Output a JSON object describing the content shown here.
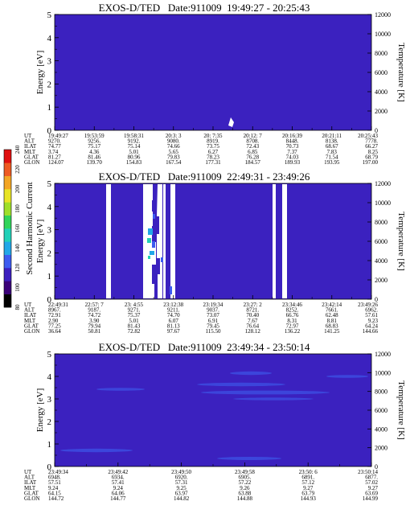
{
  "colorbar": {
    "label": "Second Harmonic Current",
    "ticks": [
      "80",
      "100",
      "120",
      "140",
      "160",
      "180",
      "200",
      "220",
      "240"
    ],
    "colors": [
      "#000000",
      "#3a0078",
      "#3c1fbf",
      "#3d5bf0",
      "#22a7e8",
      "#22d1b8",
      "#31d45a",
      "#9fdf2a",
      "#e8e426",
      "#f3a524",
      "#ee5a22",
      "#e01010"
    ]
  },
  "chart_data": [
    {
      "type": "heatmap",
      "title": "EXOS-D/TED   Date:911009  19:49:27 - 20:25:43",
      "ylabel": "Energy [eV]",
      "y2label": "Temperature [K]",
      "ylim": [
        0,
        5
      ],
      "y2lim": [
        0,
        12000
      ],
      "yticks": [
        "0",
        "1",
        "2",
        "3",
        "4",
        "5"
      ],
      "y2ticks": [
        "0",
        "2000",
        "4000",
        "6000",
        "8000",
        "10000",
        "12000"
      ],
      "background": "#3b21bf",
      "row_labels": [
        "UT",
        "ALT",
        "ILAT",
        "MLT",
        "GLAT",
        "GLON"
      ],
      "columns": [
        [
          "19:49:27",
          "9270.",
          "74.77",
          "3.74",
          "81.27",
          "124.07"
        ],
        [
          "19:53:59",
          "9256.",
          "75.17",
          "4.36",
          "81.46",
          "139.70"
        ],
        [
          "19:58:31",
          "9192.",
          "75.14",
          "5.01",
          "80.96",
          "154.83"
        ],
        [
          "20:3: 3",
          "9080.",
          "74.66",
          "5.65",
          "79.83",
          "167.54"
        ],
        [
          "20: 7:35",
          "8919.",
          "73.75",
          "6.27",
          "78.23",
          "177.31"
        ],
        [
          "20:12: 7",
          "8708.",
          "72.43",
          "6.85",
          "76.28",
          "184.57"
        ],
        [
          "20:16:39",
          "8448.",
          "70.73",
          "7.37",
          "74.03",
          "189.93"
        ],
        [
          "20:21:11",
          "8138.",
          "68.67",
          "7.83",
          "71.54",
          "193.95"
        ],
        [
          "20:25:43",
          "7778.",
          "66.27",
          "8.25",
          "68.79",
          "197.00"
        ]
      ]
    },
    {
      "type": "heatmap",
      "title": "EXOS-D/TED   Date:911009  22:49:31 - 23:49:26",
      "ylabel": "Energy [eV]",
      "y2label": "Temperature [K]",
      "ylim": [
        0,
        5
      ],
      "y2lim": [
        0,
        12000
      ],
      "yticks": [
        "0",
        "1",
        "2",
        "3",
        "4",
        "5"
      ],
      "y2ticks": [
        "0",
        "2000",
        "4000",
        "6000",
        "8000",
        "10000",
        "12000"
      ],
      "background": "#3b21bf",
      "row_labels": [
        "UT",
        "ALT",
        "ILAT",
        "MLT",
        "GLAT",
        "GLON"
      ],
      "columns": [
        [
          "22:49:31",
          "8967.",
          "72.91",
          "2.90",
          "77.25",
          "36.64"
        ],
        [
          "22:57: 7",
          "9187.",
          "74.72",
          "3.90",
          "79.94",
          "50.81"
        ],
        [
          "23: 4:55",
          "9271.",
          "75.37",
          "5.01",
          "81.43",
          "72.82"
        ],
        [
          "23:12:38",
          "9211.",
          "74.70",
          "6.07",
          "81.13",
          "97.67"
        ],
        [
          "23:19:34",
          "9037.",
          "73.07",
          "6.91",
          "79.45",
          "115.50"
        ],
        [
          "23:27: 2",
          "8721.",
          "70.40",
          "7.67",
          "76.64",
          "128.12"
        ],
        [
          "23:34:46",
          "8252.",
          "66.76",
          "8.31",
          "72.97",
          "136.22"
        ],
        [
          "23:42:14",
          "7661.",
          "62.48",
          "8.81",
          "68.83",
          "141.25"
        ],
        [
          "23:49:26",
          "6962.",
          "57.61",
          "9.23",
          "64.24",
          "144.66"
        ]
      ]
    },
    {
      "type": "heatmap",
      "title": "EXOS-D/TED   Date:911009  23:49:34 - 23:50:14",
      "ylabel": "Energy [eV]",
      "y2label": "Temperature [K]",
      "ylim": [
        0,
        5
      ],
      "y2lim": [
        0,
        12000
      ],
      "yticks": [
        "0",
        "1",
        "2",
        "3",
        "4",
        "5"
      ],
      "y2ticks": [
        "0",
        "2000",
        "4000",
        "6000",
        "8000",
        "10000",
        "12000"
      ],
      "background": "#3b21bf",
      "row_labels": [
        "UT",
        "ALT",
        "ILAT",
        "MLT",
        "GLAT",
        "GLON"
      ],
      "columns": [
        [
          "23:49:34",
          "6948.",
          "57.51",
          "9.24",
          "64.15",
          "144.72"
        ],
        [
          "23:49:42",
          "6934.",
          "57.41",
          "9.24",
          "64.06",
          "144.77"
        ],
        [
          "23:49:50",
          "6920.",
          "57.31",
          "9.25",
          "63.97",
          "144.82"
        ],
        [
          "23:49:58",
          "6905.",
          "57.22",
          "9.26",
          "63.88",
          "144.88"
        ],
        [
          "23:50: 6",
          "6891.",
          "57.12",
          "9.27",
          "63.79",
          "144.93"
        ],
        [
          "23:50:14",
          "6877.",
          "57.02",
          "9.27",
          "63.69",
          "144.99"
        ]
      ]
    }
  ]
}
